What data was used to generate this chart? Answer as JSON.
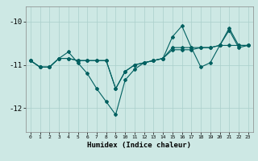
{
  "xlabel": "Humidex (Indice chaleur)",
  "xlim": [
    -0.5,
    23.5
  ],
  "ylim": [
    -12.55,
    -9.65
  ],
  "background_color": "#cde8e4",
  "line_color": "#006060",
  "grid_color": "#aacfcb",
  "x_ticks": [
    0,
    1,
    2,
    3,
    4,
    5,
    6,
    7,
    8,
    9,
    10,
    11,
    12,
    13,
    14,
    15,
    16,
    17,
    18,
    19,
    20,
    21,
    22,
    23
  ],
  "y_ticks": [
    -12,
    -11,
    -10
  ],
  "series1_y": [
    -10.9,
    -11.05,
    -11.05,
    -10.85,
    -10.85,
    -10.9,
    -10.9,
    -10.9,
    -10.9,
    -11.55,
    -11.15,
    -11.0,
    -10.95,
    -10.9,
    -10.85,
    -10.65,
    -10.65,
    -10.65,
    -10.6,
    -10.6,
    -10.55,
    -10.55,
    -10.55,
    -10.55
  ],
  "series2_y": [
    -10.9,
    -11.05,
    -11.05,
    -10.85,
    -10.7,
    -10.95,
    -11.2,
    -11.55,
    -11.85,
    -12.15,
    -11.35,
    -11.1,
    -10.95,
    -10.9,
    -10.85,
    -10.6,
    -10.6,
    -10.6,
    -11.05,
    -10.95,
    -10.55,
    -10.15,
    -10.55,
    -10.55
  ],
  "series3_y": [
    -10.9,
    -11.05,
    -11.05,
    -10.85,
    -10.85,
    -10.9,
    -10.9,
    -10.9,
    -10.9,
    -11.55,
    -11.15,
    -11.0,
    -10.95,
    -10.9,
    -10.85,
    -10.35,
    -10.1,
    -10.6,
    -10.6,
    -10.6,
    -10.55,
    -10.2,
    -10.6,
    -10.55
  ]
}
